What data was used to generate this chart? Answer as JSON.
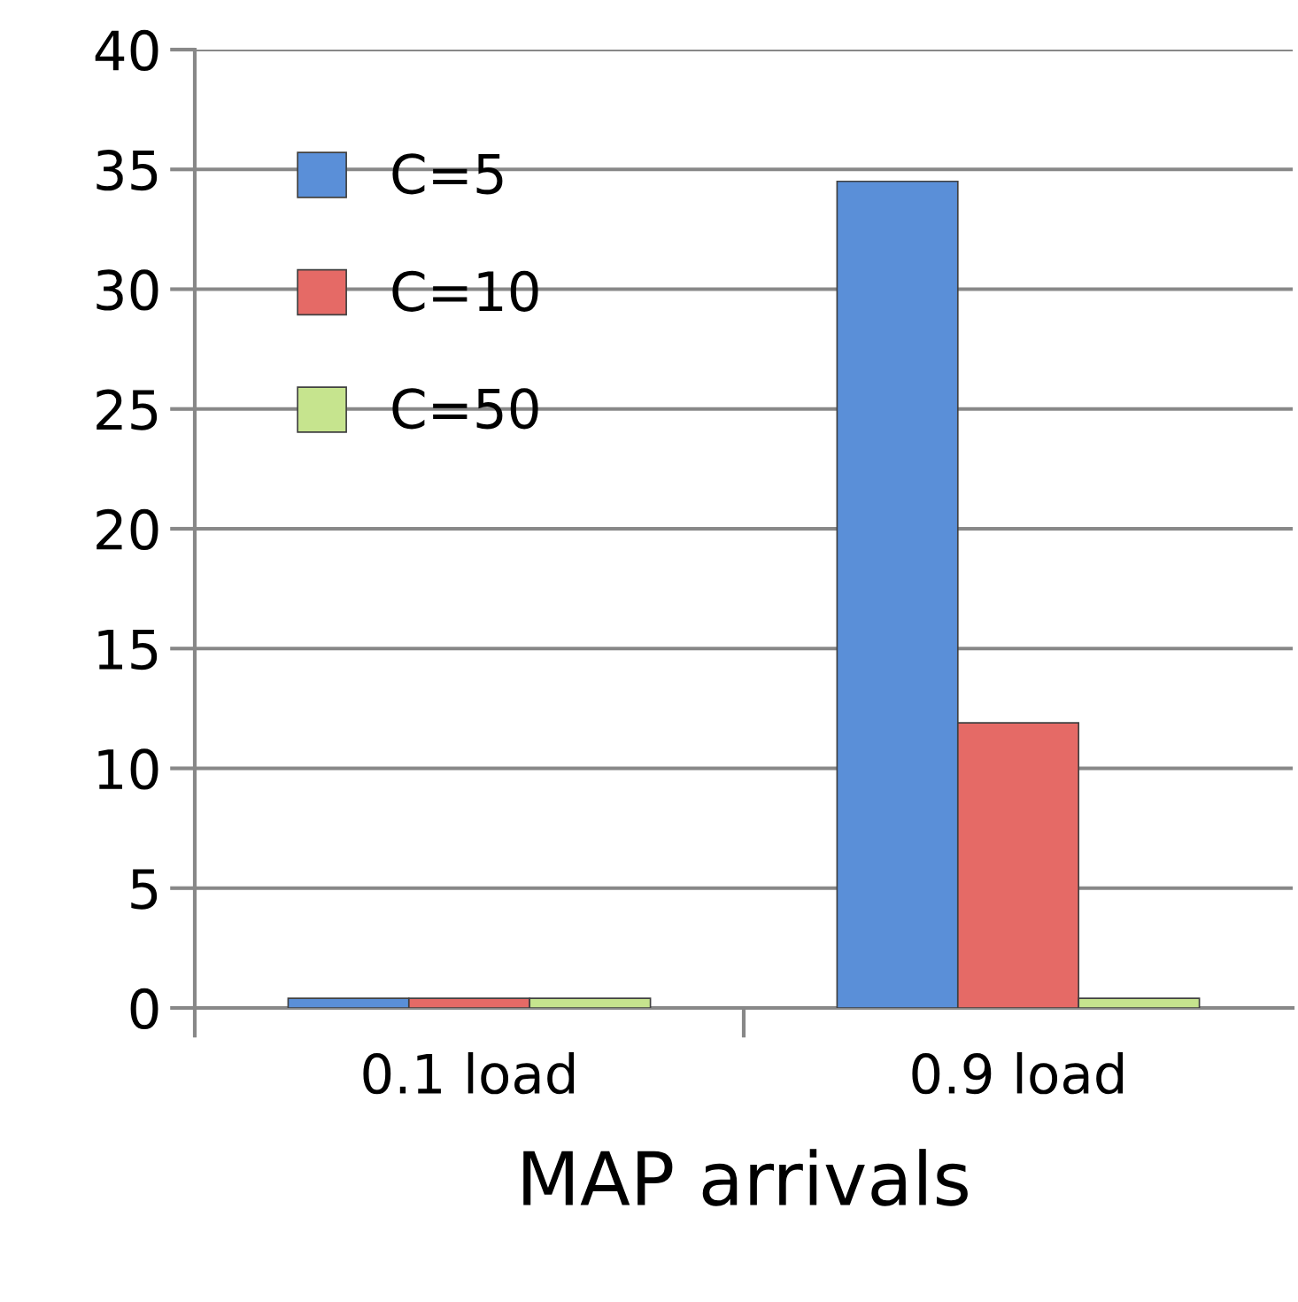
{
  "chart_data": {
    "type": "bar",
    "xlabel": "MAP arrivals",
    "categories": [
      "0.1 load",
      "0.9 load"
    ],
    "series": [
      {
        "name": "C=5",
        "color": "#5a8fd8",
        "values": [
          0.4,
          34.5
        ]
      },
      {
        "name": "C=10",
        "color": "#e56a66",
        "values": [
          0.4,
          11.9
        ]
      },
      {
        "name": "C=50",
        "color": "#c6e48e",
        "values": [
          0.4,
          0.4
        ]
      }
    ],
    "ylim": [
      0,
      40
    ],
    "yticks": [
      0,
      5,
      10,
      15,
      20,
      25,
      30,
      35,
      40
    ],
    "grid": "y",
    "legend": "top left"
  }
}
